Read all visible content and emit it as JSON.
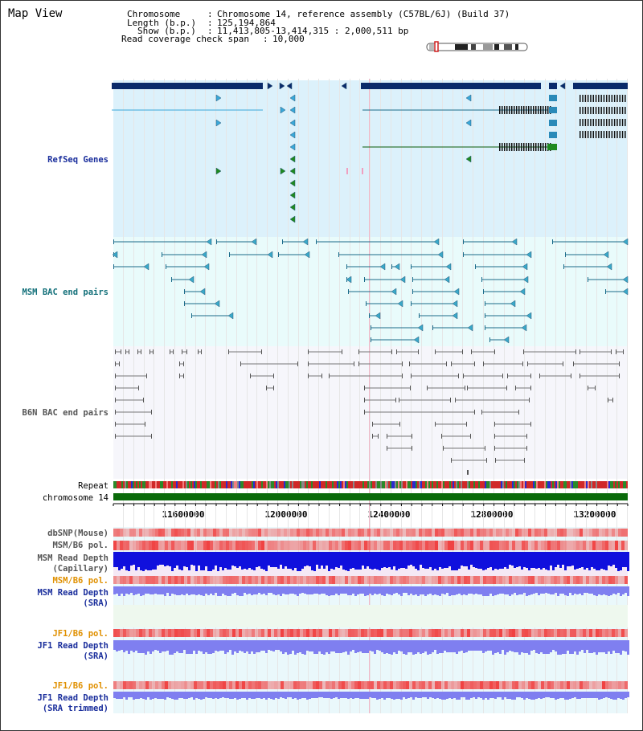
{
  "title": "Map View",
  "info": {
    "chromosome_label": "Chromosome",
    "chromosome_value": "Chromosome 14, reference assembly (C57BL/6J) (Build 37)",
    "length_label": "Length (b.p.)",
    "length_value": "125,194,864",
    "show_label": "Show (b.p.)",
    "show_value": "11,413,805-13,414,315 : 2,000,511 bp",
    "coverage_label": "Read coverage check span",
    "coverage_value": "10,000"
  },
  "tracks": {
    "refseq": "RefSeq Genes",
    "msm_bac": "MSM BAC end pairs",
    "b6n_bac": "B6N BAC end pairs",
    "repeat": "Repeat",
    "chromosome": "chromosome 14",
    "dbsnp": "dbSNP(Mouse)",
    "msm_b6_pol_1": "MSM/B6 pol.",
    "msm_read_depth_cap_1": "MSM Read Depth",
    "msm_read_depth_cap_2": "(Capillary)",
    "msm_b6_pol_2": "MSM/B6 pol.",
    "msm_read_depth_sra_1": "MSM Read Depth",
    "msm_read_depth_sra_2": "(SRA)",
    "jf1_b6_pol_1": "JF1/B6 pol.",
    "jf1_read_depth_sra_1": "JF1 Read Depth",
    "jf1_read_depth_sra_2": "(SRA)",
    "jf1_b6_pol_2": "JF1/B6 pol.",
    "jf1_read_depth_trim_1": "JF1 Read Depth",
    "jf1_read_depth_trim_2": "(SRA trimmed)"
  },
  "axis": {
    "ticks": [
      "11600000",
      "12000000",
      "12400000",
      "12800000",
      "13200000"
    ]
  },
  "colors": {
    "refseq_bg": "#dcf1fb",
    "msm_bac_bg": "#e9fbfb",
    "b6n_bac_bg": "#f5f5fb",
    "gene_dark": "#0a2a6a",
    "gene_blue": "#3aa8d8",
    "gene_green": "#1f8a1f",
    "bac_teal": "#1a6b8a",
    "bac_grey": "#777777",
    "chromosome_bar": "#0a6a0a",
    "depth_dark": "#1010dd",
    "depth_light": "#7f7ff0",
    "pol_red": "#f05050"
  }
}
